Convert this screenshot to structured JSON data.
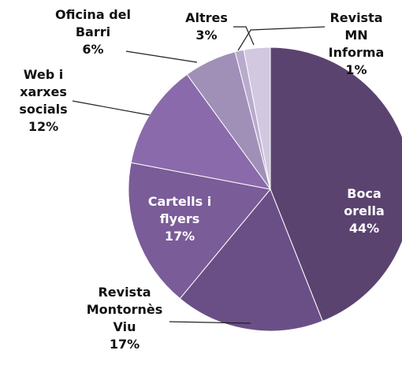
{
  "chart_data": {
    "type": "pie",
    "categories": [
      "Boca orella",
      "Revista Montornès Viu",
      "Cartells i flyers",
      "Web i xarxes socials",
      "Oficina del Barri",
      "Revista MN Informa",
      "Altres"
    ],
    "values": [
      44,
      17,
      17,
      12,
      6,
      1,
      3
    ],
    "value_labels": [
      "44%",
      "17%",
      "17%",
      "12%",
      "6%",
      "1%",
      "3%"
    ],
    "colors": [
      "#5b4370",
      "#6a4f86",
      "#7a5c98",
      "#8a6aab",
      "#a090b8",
      "#b9abcd",
      "#d2c8e0"
    ]
  }
}
